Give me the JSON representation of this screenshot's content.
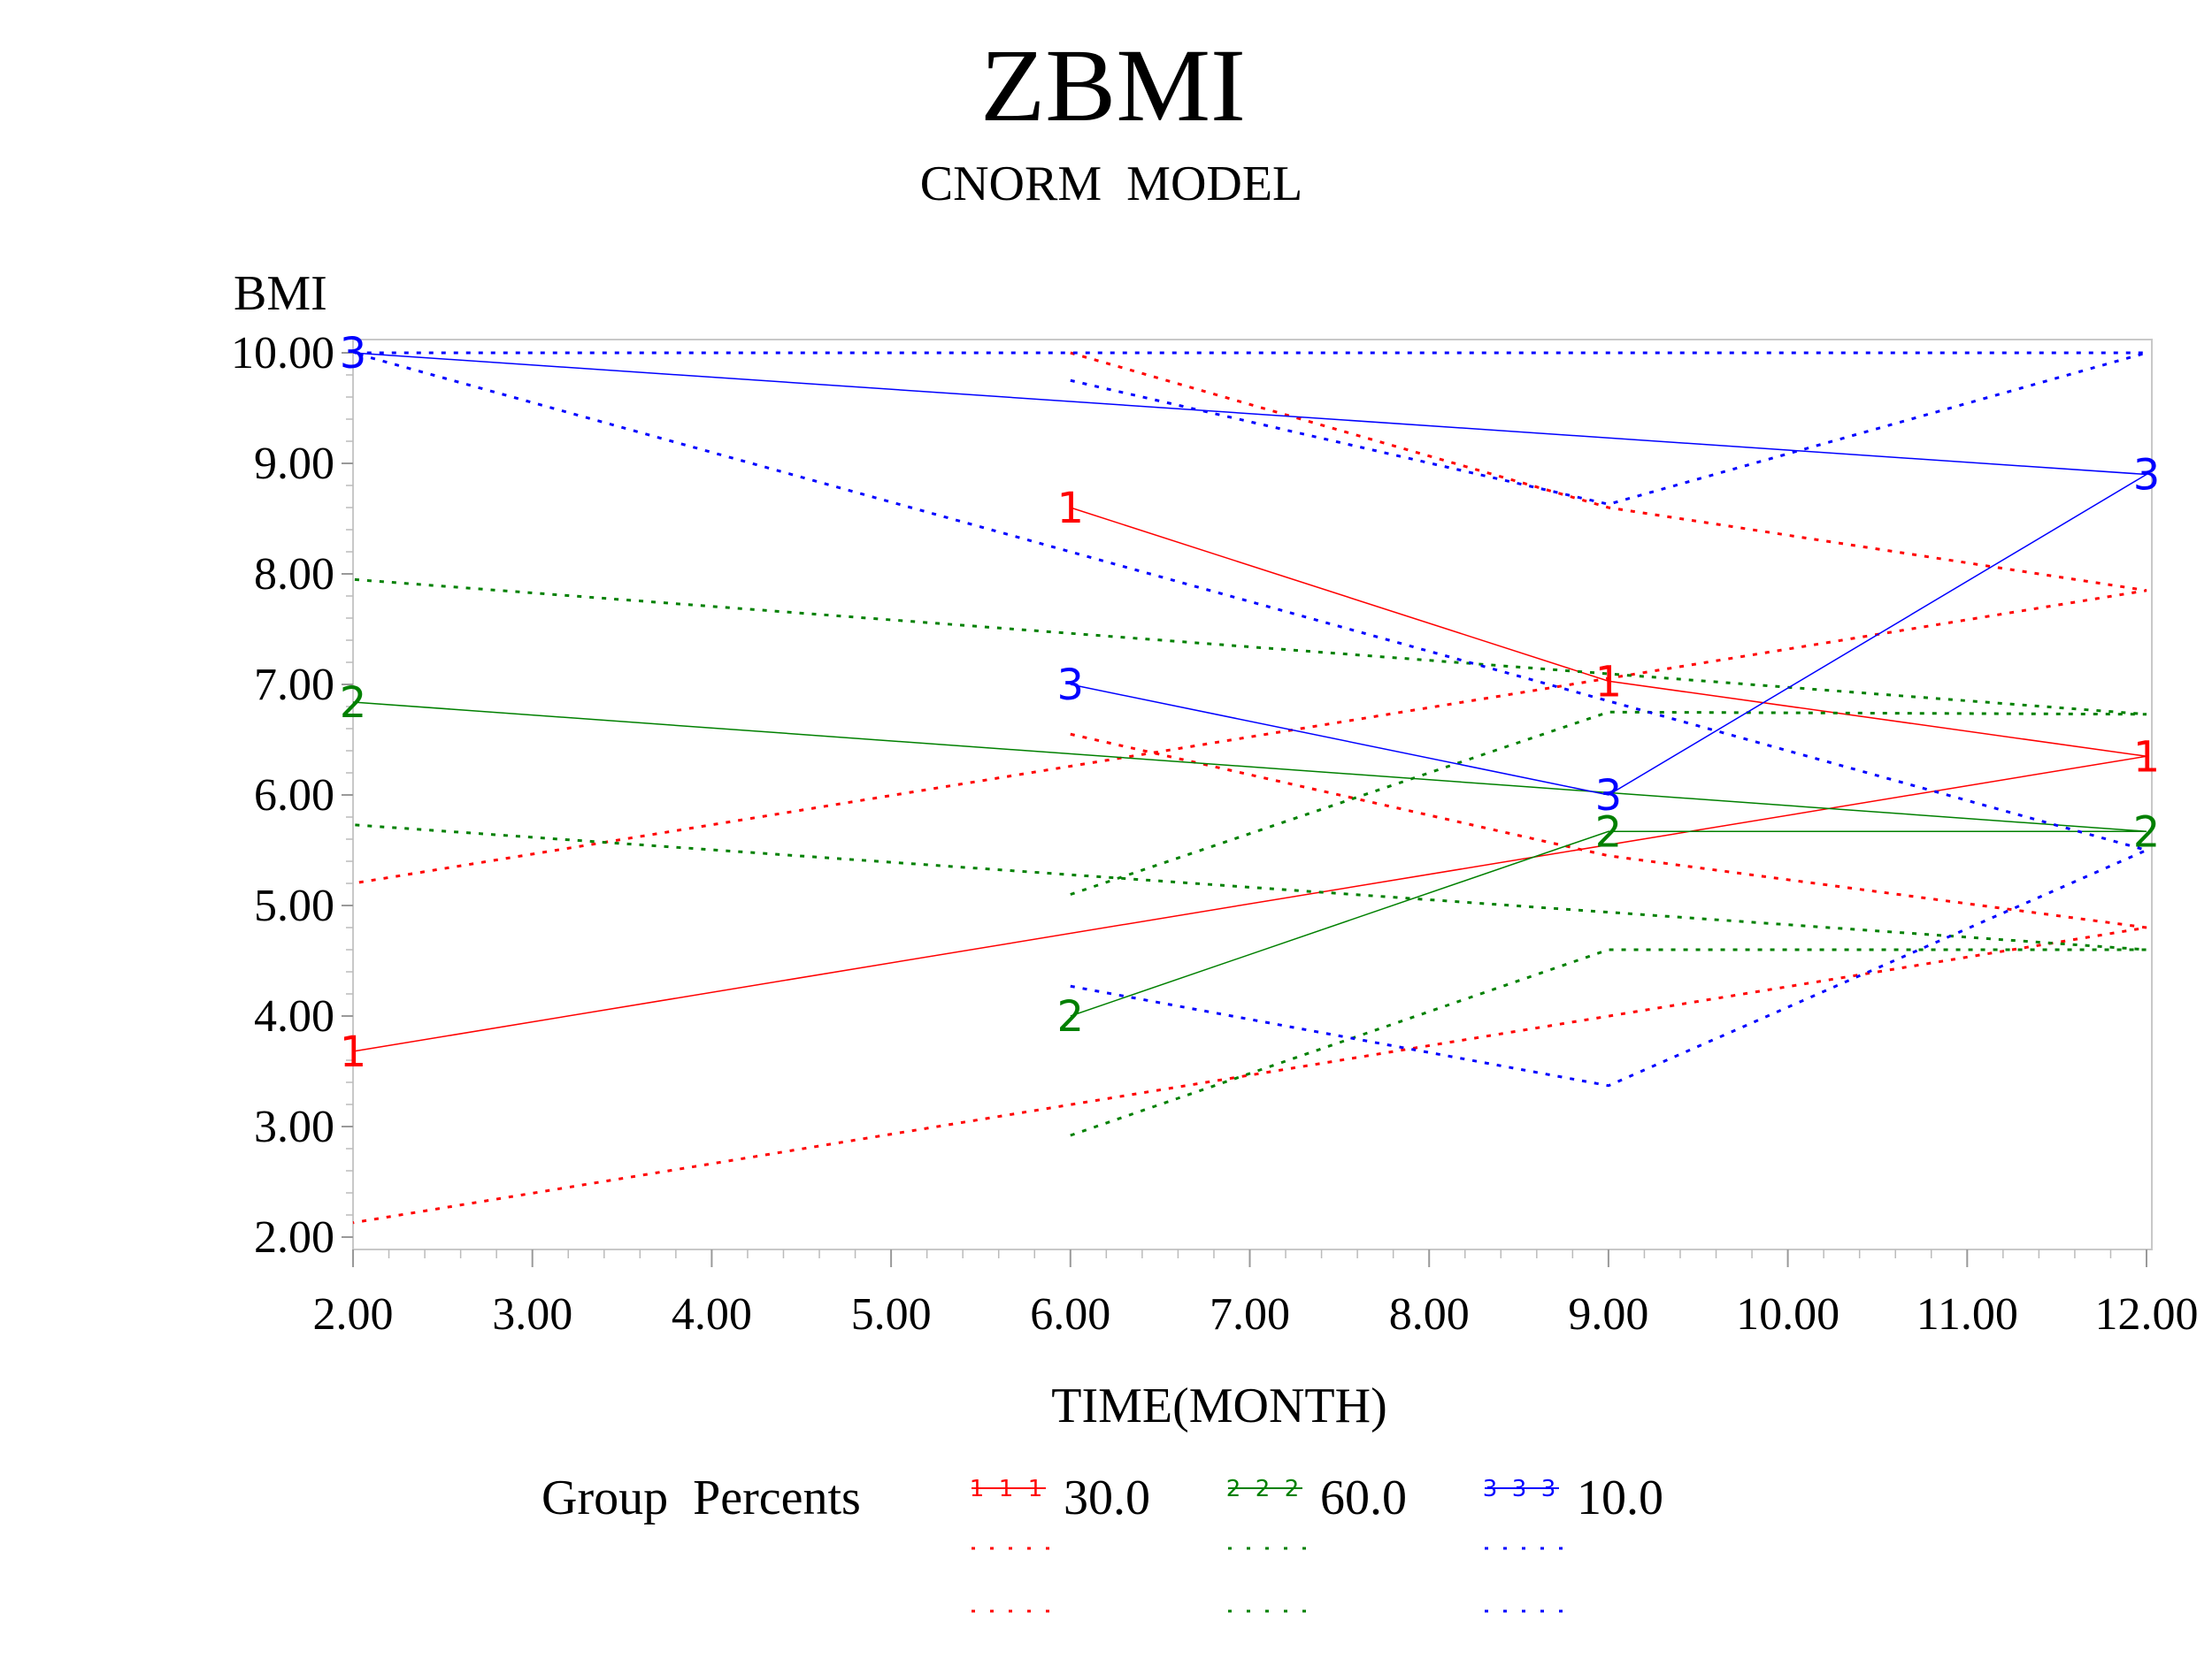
{
  "chart_data": {
    "type": "line",
    "title": "ZBMI",
    "subtitle": "CNORM  MODEL",
    "xlabel": "TIME(MONTH)",
    "ylabel": "BMI",
    "xlim": [
      2,
      12
    ],
    "ylim": [
      2,
      10
    ],
    "xticks": [
      "2.00",
      "3.00",
      "4.00",
      "5.00",
      "6.00",
      "7.00",
      "8.00",
      "9.00",
      "10.00",
      "11.00",
      "12.00"
    ],
    "yticks": [
      "2.00",
      "3.00",
      "4.00",
      "5.00",
      "6.00",
      "7.00",
      "8.00",
      "9.00",
      "10.00"
    ],
    "x_order": [
      6,
      9,
      12,
      2
    ],
    "series": [
      {
        "name": "1",
        "color": "#ff0000",
        "percent": "30.0",
        "values": [
          8.6,
          7.03,
          6.35,
          3.68
        ],
        "upper": [
          10.0,
          8.6,
          7.85,
          5.2
        ],
        "lower": [
          6.55,
          5.45,
          4.8,
          2.13
        ]
      },
      {
        "name": "2",
        "color": "#008000",
        "percent": "60.0",
        "values": [
          4.0,
          5.67,
          5.67,
          6.84
        ],
        "upper": [
          5.1,
          6.75,
          6.73,
          7.95
        ],
        "lower": [
          2.92,
          4.6,
          4.6,
          5.73
        ]
      },
      {
        "name": "3",
        "color": "#0000ff",
        "percent": "10.0",
        "values": [
          7.0,
          6.0,
          8.9,
          10.0
        ],
        "upper": [
          9.75,
          8.63,
          10.0,
          10.0
        ],
        "lower": [
          4.27,
          3.37,
          5.5,
          10.0
        ]
      }
    ],
    "legend": {
      "title": "Group  Percents",
      "placement": "bottom"
    },
    "grid": false
  }
}
